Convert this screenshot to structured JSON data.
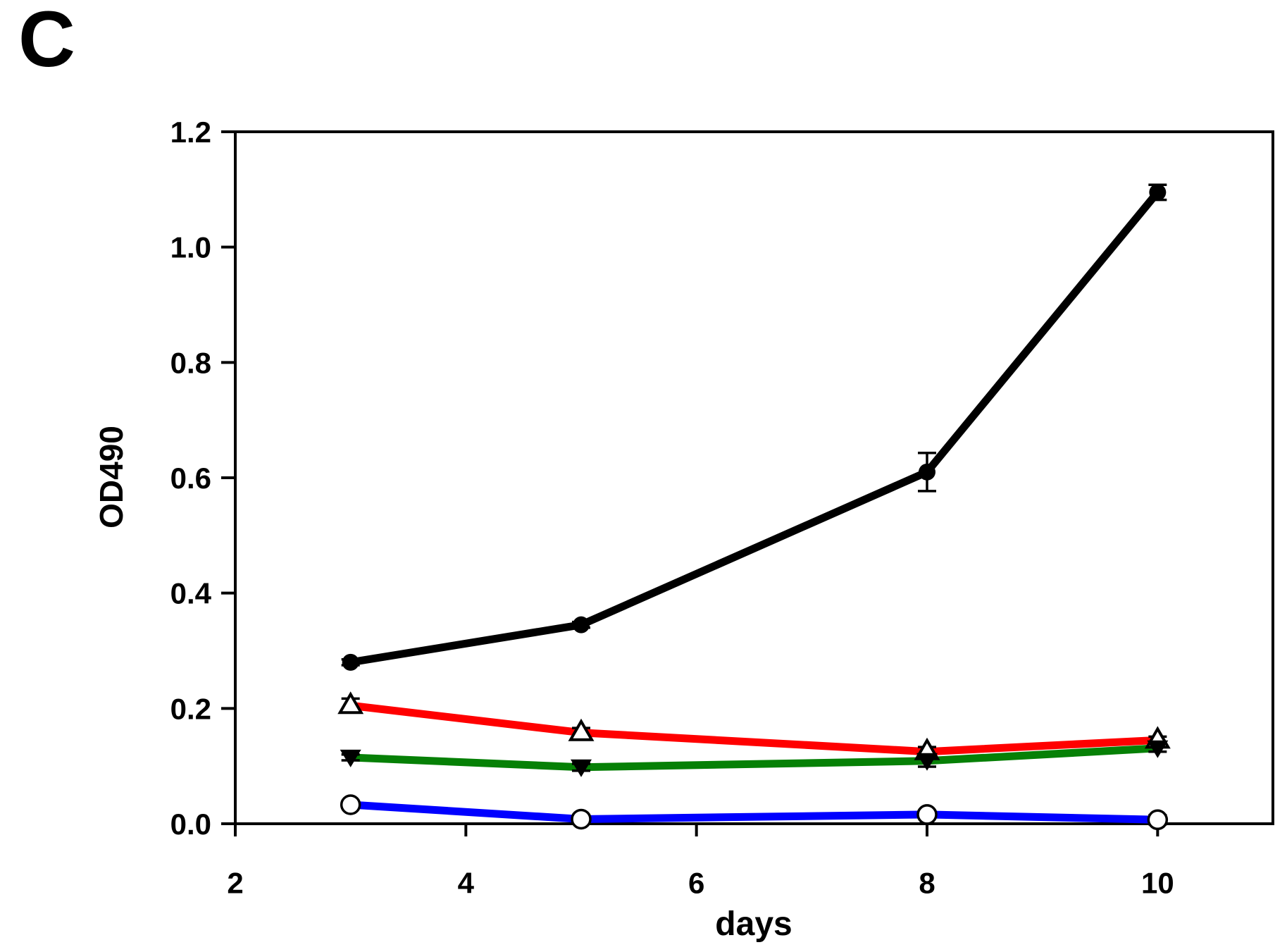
{
  "chart_data": {
    "type": "line",
    "panel_label": "C",
    "title": "",
    "xlabel": "days",
    "ylabel": "OD490",
    "x": [
      3,
      5,
      8,
      10
    ],
    "xlim": [
      2,
      11
    ],
    "ylim": [
      0.0,
      1.2
    ],
    "xticks": [
      2,
      4,
      6,
      8,
      10
    ],
    "xtick_labels": [
      "2",
      "4",
      "6",
      "8",
      "10"
    ],
    "yticks": [
      0.0,
      0.2,
      0.4,
      0.6,
      0.8,
      1.0,
      1.2
    ],
    "ytick_labels": [
      "0.0",
      "0.2",
      "0.4",
      "0.6",
      "0.8",
      "1.0",
      "1.2"
    ],
    "grid": false,
    "legend": "none",
    "axis_color": "#000000",
    "series": [
      {
        "name": "black-filled-circle",
        "color": "#000000",
        "marker": "circle-filled",
        "values": [
          0.28,
          0.345,
          0.61,
          1.095
        ],
        "errors": [
          0.005,
          0.005,
          0.033,
          0.013
        ]
      },
      {
        "name": "red-open-triangle",
        "color": "#ff0000",
        "marker": "triangle-up-open",
        "values": [
          0.205,
          0.158,
          0.125,
          0.145
        ],
        "errors": [
          0.012,
          0.008,
          0.008,
          0.006
        ]
      },
      {
        "name": "green-filled-triangle",
        "color": "#068006",
        "marker": "triangle-down-filled",
        "values": [
          0.115,
          0.098,
          0.109,
          0.131
        ],
        "errors": [
          0.005,
          0.006,
          0.01,
          0.006
        ]
      },
      {
        "name": "blue-open-circle",
        "color": "#0000ff",
        "marker": "circle-open",
        "values": [
          0.033,
          0.008,
          0.016,
          0.007
        ],
        "errors": [
          0.004,
          0.003,
          0.004,
          0.008
        ]
      }
    ]
  }
}
